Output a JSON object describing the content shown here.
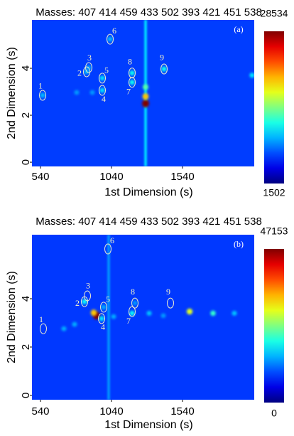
{
  "chart_data": [
    {
      "type": "heatmap",
      "title": "Masses:  407 414 459 433 502 393 421 451 538",
      "panel": "(a)",
      "x_label": "1st Dimension (s)",
      "y_label": "2nd Dimension (s)",
      "xlim": [
        480,
        2045
      ],
      "xticks": [
        540,
        1040,
        1540
      ],
      "ylim": [
        -0.18,
        6.06
      ],
      "yticks": [
        0,
        2,
        4
      ],
      "clim": [
        1502,
        28534
      ],
      "baseline": 6500,
      "grid": false,
      "ridges": [
        {
          "x": 1280,
          "value": 11000
        }
      ],
      "spots": [
        {
          "x": 1280,
          "y": 2.5,
          "value": 28534
        },
        {
          "x": 1280,
          "y": 2.8,
          "value": 20000
        },
        {
          "x": 1280,
          "y": 3.2,
          "value": 14000
        },
        {
          "x": 555,
          "y": 2.85,
          "value": 10000
        },
        {
          "x": 865,
          "y": 3.85,
          "value": 10000
        },
        {
          "x": 880,
          "y": 4.03,
          "value": 9500
        },
        {
          "x": 975,
          "y": 3.58,
          "value": 11000
        },
        {
          "x": 975,
          "y": 3.06,
          "value": 11000
        },
        {
          "x": 1185,
          "y": 3.8,
          "value": 12000
        },
        {
          "x": 1185,
          "y": 3.4,
          "value": 12000
        },
        {
          "x": 1410,
          "y": 3.97,
          "value": 12000
        },
        {
          "x": 1030,
          "y": 5.24,
          "value": 10000
        },
        {
          "x": 2030,
          "y": 3.7,
          "value": 11000
        },
        {
          "x": 795,
          "y": 2.97,
          "value": 9000
        },
        {
          "x": 905,
          "y": 2.97,
          "value": 9000
        }
      ],
      "peaks": [
        {
          "label": "1",
          "x": 555,
          "y": 2.85
        },
        {
          "label": "2",
          "x": 865,
          "y": 3.85
        },
        {
          "label": "3",
          "x": 880,
          "y": 4.03
        },
        {
          "label": "4",
          "x": 975,
          "y": 3.06
        },
        {
          "label": "5",
          "x": 975,
          "y": 3.58
        },
        {
          "label": "6",
          "x": 1030,
          "y": 5.24
        },
        {
          "label": "7",
          "x": 1185,
          "y": 3.4
        },
        {
          "label": "8",
          "x": 1185,
          "y": 3.8
        },
        {
          "label": "9",
          "x": 1410,
          "y": 3.97
        }
      ]
    },
    {
      "type": "heatmap",
      "title": "Masses:  407 414 459 433 502 393 421 451 538",
      "panel": "(b)",
      "x_label": "1st Dimension (s)",
      "y_label": "2nd Dimension (s)",
      "xlim": [
        480,
        2045
      ],
      "xticks": [
        540,
        1040,
        1540
      ],
      "ylim": [
        -0.18,
        6.65
      ],
      "yticks": [
        0,
        2,
        4
      ],
      "clim": [
        0,
        47153
      ],
      "baseline": 8500,
      "grid": false,
      "ridges": [
        {
          "x": 1020,
          "value": 13000
        }
      ],
      "spots": [
        {
          "x": 935,
          "y": 3.3,
          "value": 47153
        },
        {
          "x": 915,
          "y": 3.42,
          "value": 32000
        },
        {
          "x": 1590,
          "y": 3.47,
          "value": 28000
        },
        {
          "x": 1755,
          "y": 3.4,
          "value": 20000
        },
        {
          "x": 850,
          "y": 3.88,
          "value": 18000
        },
        {
          "x": 970,
          "y": 3.18,
          "value": 17000
        },
        {
          "x": 1185,
          "y": 3.4,
          "value": 18000
        },
        {
          "x": 1305,
          "y": 3.4,
          "value": 15000
        },
        {
          "x": 705,
          "y": 2.76,
          "value": 14000
        },
        {
          "x": 780,
          "y": 2.94,
          "value": 14000
        },
        {
          "x": 1055,
          "y": 3.26,
          "value": 14000
        },
        {
          "x": 1905,
          "y": 3.4,
          "value": 15000
        },
        {
          "x": 1405,
          "y": 3.3,
          "value": 13000
        },
        {
          "x": 1205,
          "y": 3.82,
          "value": 13000
        },
        {
          "x": 985,
          "y": 3.65,
          "value": 14000
        }
      ],
      "peaks": [
        {
          "label": "1",
          "x": 560,
          "y": 2.76
        },
        {
          "label": "2",
          "x": 850,
          "y": 3.88
        },
        {
          "label": "3",
          "x": 870,
          "y": 4.12
        },
        {
          "label": "4",
          "x": 970,
          "y": 3.18
        },
        {
          "label": "5",
          "x": 985,
          "y": 3.65
        },
        {
          "label": "6",
          "x": 1015,
          "y": 6.06
        },
        {
          "label": "7",
          "x": 1185,
          "y": 3.47
        },
        {
          "label": "8",
          "x": 1205,
          "y": 3.82
        },
        {
          "label": "9",
          "x": 1455,
          "y": 3.82
        }
      ]
    }
  ]
}
